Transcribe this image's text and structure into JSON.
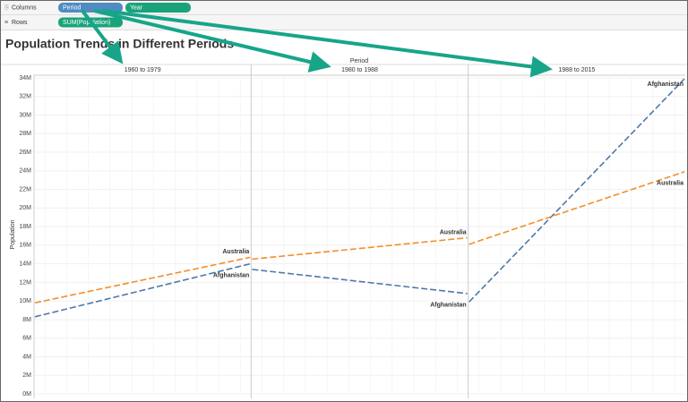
{
  "shelves": {
    "columns": {
      "label": "Columns",
      "pills": [
        "Period",
        "Year"
      ]
    },
    "rows": {
      "label": "Rows",
      "pills": [
        "SUM(Population)"
      ]
    }
  },
  "chart_data": {
    "type": "line",
    "title": "Population Trends in Different Periods",
    "x_header": "Period",
    "y_label": "Population",
    "ylim": [
      0,
      34
    ],
    "yticks": [
      {
        "value": 0,
        "label": "0M"
      },
      {
        "value": 2,
        "label": "2M"
      },
      {
        "value": 4,
        "label": "4M"
      },
      {
        "value": 6,
        "label": "6M"
      },
      {
        "value": 8,
        "label": "8M"
      },
      {
        "value": 10,
        "label": "10M"
      },
      {
        "value": 12,
        "label": "12M"
      },
      {
        "value": 14,
        "label": "14M"
      },
      {
        "value": 16,
        "label": "16M"
      },
      {
        "value": 18,
        "label": "18M"
      },
      {
        "value": 20,
        "label": "20M"
      },
      {
        "value": 22,
        "label": "22M"
      },
      {
        "value": 24,
        "label": "24M"
      },
      {
        "value": 26,
        "label": "26M"
      },
      {
        "value": 28,
        "label": "28M"
      },
      {
        "value": 30,
        "label": "30M"
      },
      {
        "value": 32,
        "label": "32M"
      },
      {
        "value": 34,
        "label": "34M"
      }
    ],
    "grid": true,
    "panels": [
      {
        "name": "1960 to 1979",
        "series": [
          {
            "name": "Afghanistan",
            "color": "#4e79a7",
            "values": [
              8.3,
              14.0
            ]
          },
          {
            "name": "Australia",
            "color": "#f28e2b",
            "values": [
              9.8,
              14.7
            ]
          }
        ]
      },
      {
        "name": "1980 to 1988",
        "series": [
          {
            "name": "Afghanistan",
            "color": "#4e79a7",
            "values": [
              13.4,
              10.8
            ]
          },
          {
            "name": "Australia",
            "color": "#f28e2b",
            "values": [
              14.5,
              16.8
            ]
          }
        ]
      },
      {
        "name": "1988 to 2015",
        "series": [
          {
            "name": "Afghanistan",
            "color": "#4e79a7",
            "values": [
              9.9,
              33.9
            ]
          },
          {
            "name": "Australia",
            "color": "#f28e2b",
            "values": [
              16.1,
              23.9
            ]
          }
        ]
      }
    ]
  }
}
